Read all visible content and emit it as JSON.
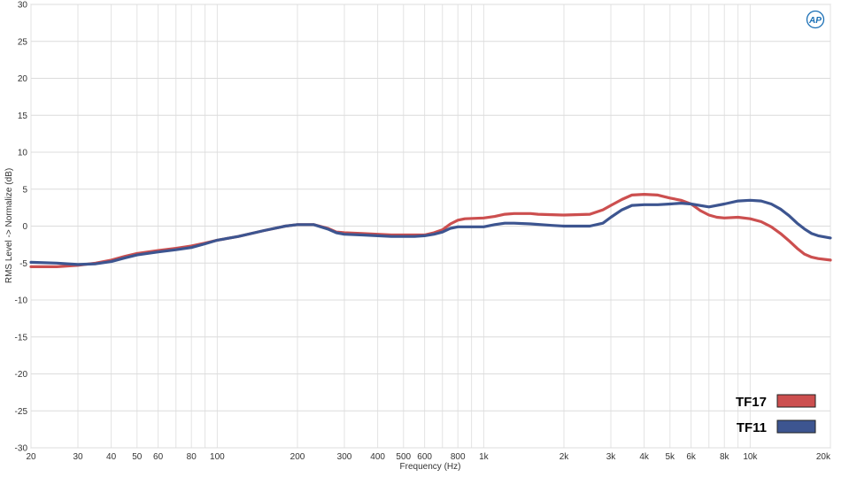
{
  "chart_data": {
    "type": "line",
    "title": "",
    "xlabel": "Frequency (Hz)",
    "ylabel": "RMS Level -> Normalize (dB)",
    "xscale": "log",
    "xlim": [
      20,
      20000
    ],
    "ylim": [
      -30,
      30
    ],
    "grid": true,
    "legend_position": "bottom-right",
    "x_ticks": [
      {
        "value": 20,
        "label": "20"
      },
      {
        "value": 30,
        "label": "30"
      },
      {
        "value": 40,
        "label": "40"
      },
      {
        "value": 50,
        "label": "50"
      },
      {
        "value": 60,
        "label": "60"
      },
      {
        "value": 80,
        "label": "80"
      },
      {
        "value": 100,
        "label": "100"
      },
      {
        "value": 200,
        "label": "200"
      },
      {
        "value": 300,
        "label": "300"
      },
      {
        "value": 400,
        "label": "400"
      },
      {
        "value": 500,
        "label": "500"
      },
      {
        "value": 600,
        "label": "600"
      },
      {
        "value": 800,
        "label": "800"
      },
      {
        "value": 1000,
        "label": "1k"
      },
      {
        "value": 2000,
        "label": "2k"
      },
      {
        "value": 3000,
        "label": "3k"
      },
      {
        "value": 4000,
        "label": "4k"
      },
      {
        "value": 5000,
        "label": "5k"
      },
      {
        "value": 6000,
        "label": "6k"
      },
      {
        "value": 8000,
        "label": "8k"
      },
      {
        "value": 10000,
        "label": "10k"
      },
      {
        "value": 20000,
        "label": "20k"
      }
    ],
    "y_ticks": [
      {
        "value": 30,
        "label": "30"
      },
      {
        "value": 25,
        "label": "25"
      },
      {
        "value": 20,
        "label": "20"
      },
      {
        "value": 15,
        "label": "15"
      },
      {
        "value": 10,
        "label": "10"
      },
      {
        "value": 5,
        "label": "5"
      },
      {
        "value": 0,
        "label": "0"
      },
      {
        "value": -5,
        "label": "-5"
      },
      {
        "value": -10,
        "label": "-10"
      },
      {
        "value": -15,
        "label": "-15"
      },
      {
        "value": -20,
        "label": "-20"
      },
      {
        "value": -25,
        "label": "-25"
      },
      {
        "value": -30,
        "label": "-30"
      }
    ],
    "series": [
      {
        "name": "TF17",
        "color": "#cc4f4f",
        "points": [
          [
            20,
            -5.5
          ],
          [
            25,
            -5.5
          ],
          [
            30,
            -5.3
          ],
          [
            35,
            -5.0
          ],
          [
            40,
            -4.6
          ],
          [
            45,
            -4.1
          ],
          [
            50,
            -3.7
          ],
          [
            60,
            -3.3
          ],
          [
            70,
            -3.0
          ],
          [
            80,
            -2.7
          ],
          [
            90,
            -2.3
          ],
          [
            100,
            -1.9
          ],
          [
            120,
            -1.4
          ],
          [
            150,
            -0.6
          ],
          [
            180,
            0.0
          ],
          [
            200,
            0.2
          ],
          [
            230,
            0.2
          ],
          [
            260,
            -0.3
          ],
          [
            280,
            -0.8
          ],
          [
            300,
            -0.9
          ],
          [
            350,
            -1.0
          ],
          [
            400,
            -1.1
          ],
          [
            450,
            -1.2
          ],
          [
            500,
            -1.2
          ],
          [
            550,
            -1.2
          ],
          [
            600,
            -1.2
          ],
          [
            650,
            -0.9
          ],
          [
            700,
            -0.5
          ],
          [
            750,
            0.3
          ],
          [
            800,
            0.8
          ],
          [
            850,
            1.0
          ],
          [
            1000,
            1.1
          ],
          [
            1100,
            1.3
          ],
          [
            1200,
            1.6
          ],
          [
            1300,
            1.7
          ],
          [
            1500,
            1.7
          ],
          [
            1600,
            1.6
          ],
          [
            2000,
            1.5
          ],
          [
            2500,
            1.6
          ],
          [
            2800,
            2.2
          ],
          [
            3000,
            2.8
          ],
          [
            3300,
            3.6
          ],
          [
            3600,
            4.2
          ],
          [
            4000,
            4.3
          ],
          [
            4500,
            4.2
          ],
          [
            5000,
            3.8
          ],
          [
            5500,
            3.5
          ],
          [
            6000,
            3.0
          ],
          [
            6500,
            2.1
          ],
          [
            7000,
            1.5
          ],
          [
            7500,
            1.2
          ],
          [
            8000,
            1.1
          ],
          [
            9000,
            1.2
          ],
          [
            10000,
            1.0
          ],
          [
            11000,
            0.6
          ],
          [
            12000,
            -0.1
          ],
          [
            13000,
            -1.0
          ],
          [
            14000,
            -2.0
          ],
          [
            15000,
            -3.0
          ],
          [
            16000,
            -3.8
          ],
          [
            17000,
            -4.2
          ],
          [
            18000,
            -4.4
          ],
          [
            20000,
            -4.6
          ]
        ]
      },
      {
        "name": "TF11",
        "color": "#3d5590",
        "points": [
          [
            20,
            -4.9
          ],
          [
            25,
            -5.0
          ],
          [
            30,
            -5.2
          ],
          [
            35,
            -5.1
          ],
          [
            40,
            -4.8
          ],
          [
            45,
            -4.3
          ],
          [
            50,
            -3.9
          ],
          [
            60,
            -3.5
          ],
          [
            70,
            -3.2
          ],
          [
            80,
            -2.9
          ],
          [
            90,
            -2.4
          ],
          [
            100,
            -1.9
          ],
          [
            120,
            -1.4
          ],
          [
            150,
            -0.6
          ],
          [
            180,
            0.0
          ],
          [
            200,
            0.2
          ],
          [
            230,
            0.2
          ],
          [
            260,
            -0.4
          ],
          [
            280,
            -0.9
          ],
          [
            300,
            -1.1
          ],
          [
            350,
            -1.2
          ],
          [
            400,
            -1.3
          ],
          [
            450,
            -1.4
          ],
          [
            500,
            -1.4
          ],
          [
            550,
            -1.4
          ],
          [
            600,
            -1.3
          ],
          [
            650,
            -1.1
          ],
          [
            700,
            -0.8
          ],
          [
            750,
            -0.3
          ],
          [
            800,
            -0.1
          ],
          [
            850,
            -0.1
          ],
          [
            1000,
            -0.1
          ],
          [
            1100,
            0.2
          ],
          [
            1200,
            0.4
          ],
          [
            1300,
            0.4
          ],
          [
            1500,
            0.3
          ],
          [
            1800,
            0.1
          ],
          [
            2000,
            0.0
          ],
          [
            2500,
            0.0
          ],
          [
            2800,
            0.4
          ],
          [
            3000,
            1.2
          ],
          [
            3300,
            2.2
          ],
          [
            3600,
            2.8
          ],
          [
            4000,
            2.9
          ],
          [
            4500,
            2.9
          ],
          [
            5000,
            3.0
          ],
          [
            5500,
            3.1
          ],
          [
            6000,
            3.0
          ],
          [
            7000,
            2.6
          ],
          [
            8000,
            3.0
          ],
          [
            9000,
            3.4
          ],
          [
            10000,
            3.5
          ],
          [
            11000,
            3.4
          ],
          [
            12000,
            3.0
          ],
          [
            13000,
            2.3
          ],
          [
            14000,
            1.4
          ],
          [
            15000,
            0.4
          ],
          [
            16000,
            -0.4
          ],
          [
            17000,
            -1.0
          ],
          [
            18000,
            -1.3
          ],
          [
            20000,
            -1.6
          ]
        ]
      }
    ]
  },
  "header": {
    "logo": "AP"
  }
}
